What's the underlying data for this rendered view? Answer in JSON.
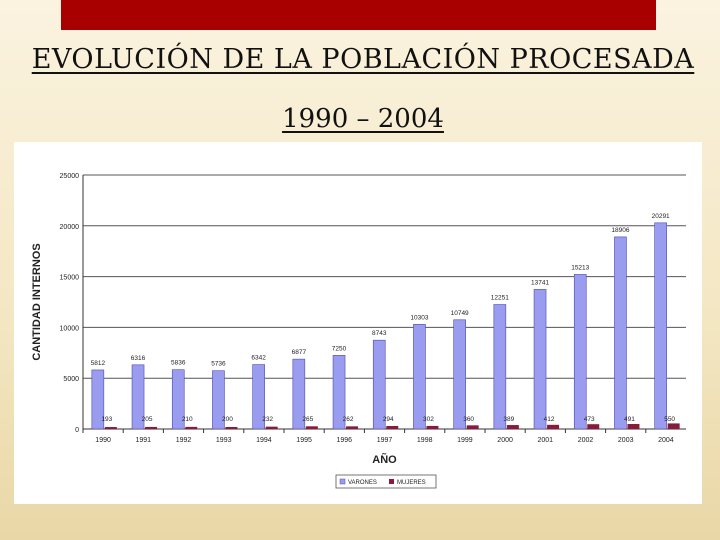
{
  "slide": {
    "title": "EVOLUCIÓN DE LA POBLACIÓN PROCESADA",
    "subtitle": "1990 – 2004"
  },
  "colors": {
    "top_bar": "#a80000",
    "varones": "#9a9cf0",
    "mujeres": "#8b1a3a"
  },
  "chart_data": {
    "type": "bar",
    "xlabel": "AÑO",
    "ylabel": "CANTIDAD INTERNOS",
    "ylim": [
      0,
      25000
    ],
    "yticks": [
      0,
      5000,
      10000,
      15000,
      20000,
      25000
    ],
    "grid": true,
    "legend_position": "bottom",
    "categories": [
      "1990",
      "1991",
      "1992",
      "1993",
      "1994",
      "1995",
      "1996",
      "1997",
      "1998",
      "1999",
      "2000",
      "2001",
      "2002",
      "2003",
      "2004"
    ],
    "series": [
      {
        "name": "VARONES",
        "values": [
          5812,
          6316,
          5836,
          5736,
          6342,
          6877,
          7250,
          8743,
          10303,
          10749,
          12251,
          13741,
          15213,
          18906,
          20291
        ]
      },
      {
        "name": "MUJERES",
        "values": [
          193,
          205,
          210,
          200,
          232,
          265,
          262,
          294,
          302,
          360,
          389,
          412,
          473,
          491,
          550
        ]
      }
    ]
  }
}
